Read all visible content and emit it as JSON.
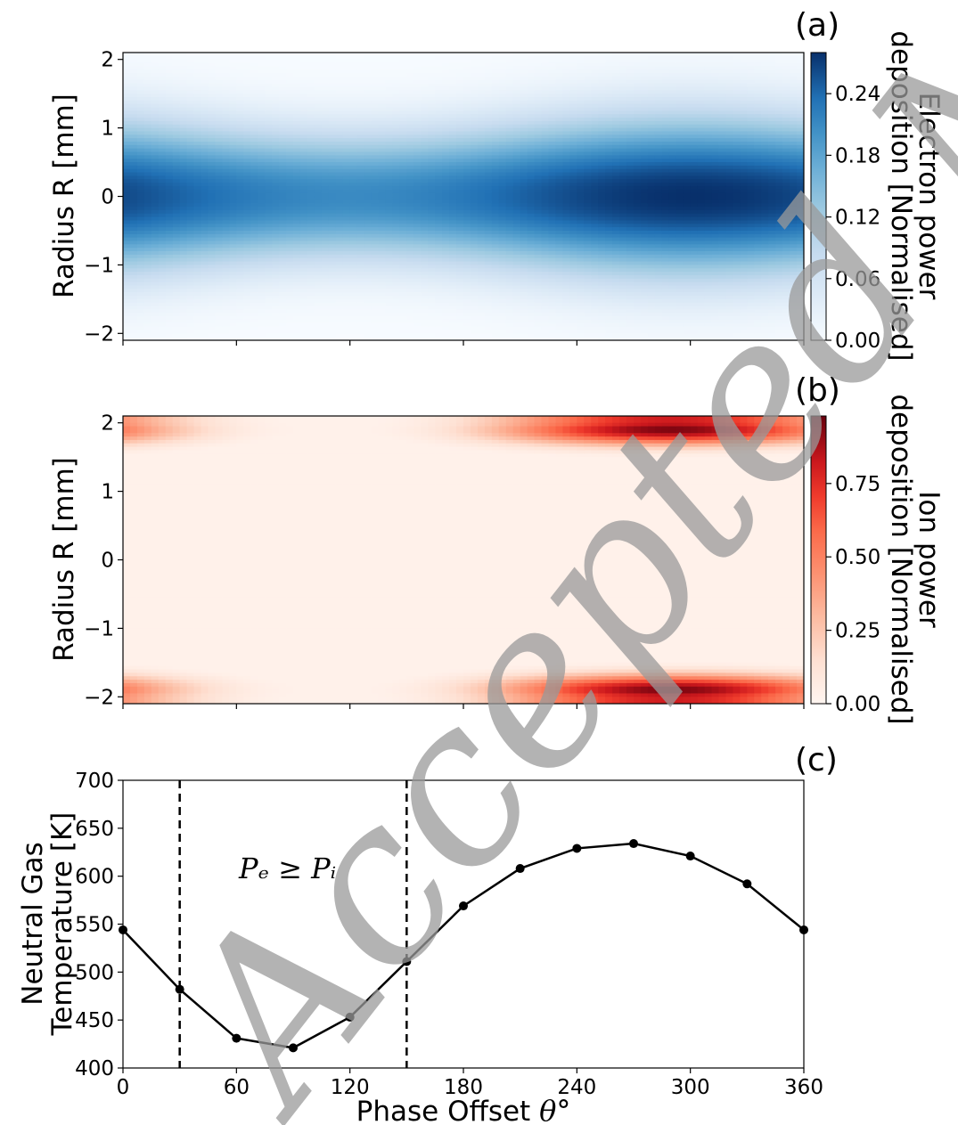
{
  "chart_data": [
    {
      "panel": "(a)",
      "type": "heatmap",
      "ylabel": "Radius R [mm]",
      "yticks": [
        "2",
        "1",
        "0",
        "−1",
        "−2"
      ],
      "ytick_values": [
        2,
        1,
        0,
        -1,
        -2
      ],
      "xlim": [
        0,
        360
      ],
      "ylim": [
        -2.1,
        2.1
      ],
      "colormap": "Blues",
      "colorbar": {
        "label_line1": "Electron power",
        "label_line2": "deposition [Normalised]",
        "ticks": [
          "0.24",
          "0.18",
          "0.12",
          "0.06",
          "0.00"
        ],
        "tick_values": [
          0.24,
          0.18,
          0.12,
          0.06,
          0.0
        ],
        "range": [
          0,
          0.28
        ]
      },
      "peak_phase_deg": 300,
      "peak_value": 0.28,
      "trough_value": 0.21
    },
    {
      "panel": "(b)",
      "type": "heatmap",
      "ylabel": "Radius R [mm]",
      "yticks": [
        "2",
        "1",
        "0",
        "−1",
        "−2"
      ],
      "ytick_values": [
        2,
        1,
        0,
        -1,
        -2
      ],
      "xlim": [
        0,
        360
      ],
      "ylim": [
        -2.1,
        2.1
      ],
      "colormap": "Reds",
      "colorbar": {
        "label_line1": "Ion power",
        "label_line2": "deposition [Normalised]",
        "ticks": [
          "0.75",
          "0.50",
          "0.25",
          "0.00"
        ],
        "tick_values": [
          0.75,
          0.5,
          0.25,
          0.0
        ],
        "range": [
          0,
          0.98
        ]
      },
      "edge_radius_mm": 1.9,
      "peak_phase_deg": 290,
      "peak_value": 0.95
    },
    {
      "panel": "(c)",
      "type": "line",
      "xlabel": "Phase Offset",
      "xlabel_symbol": "θ°",
      "ylabel_line1": "Neutral Gas",
      "ylabel_line2": "Temperature [K]",
      "xlim": [
        0,
        360
      ],
      "ylim": [
        400,
        700
      ],
      "xticks": [
        "0",
        "60",
        "120",
        "180",
        "240",
        "300",
        "360"
      ],
      "xtick_values": [
        0,
        60,
        120,
        180,
        240,
        300,
        360
      ],
      "yticks": [
        "700",
        "650",
        "600",
        "550",
        "500",
        "450",
        "400"
      ],
      "ytick_values": [
        700,
        650,
        600,
        550,
        500,
        450,
        400
      ],
      "x": [
        0,
        30,
        60,
        90,
        120,
        150,
        180,
        210,
        240,
        270,
        300,
        330,
        360
      ],
      "y": [
        544,
        482,
        431,
        421,
        453,
        511,
        569,
        608,
        629,
        634,
        621,
        592,
        544
      ],
      "vlines": [
        30,
        150
      ],
      "annotation": "Pₑ ≥ Pᵢ",
      "annotation_at": [
        90,
        605
      ],
      "grid": false
    }
  ],
  "watermark": "Accepted Manuscript"
}
